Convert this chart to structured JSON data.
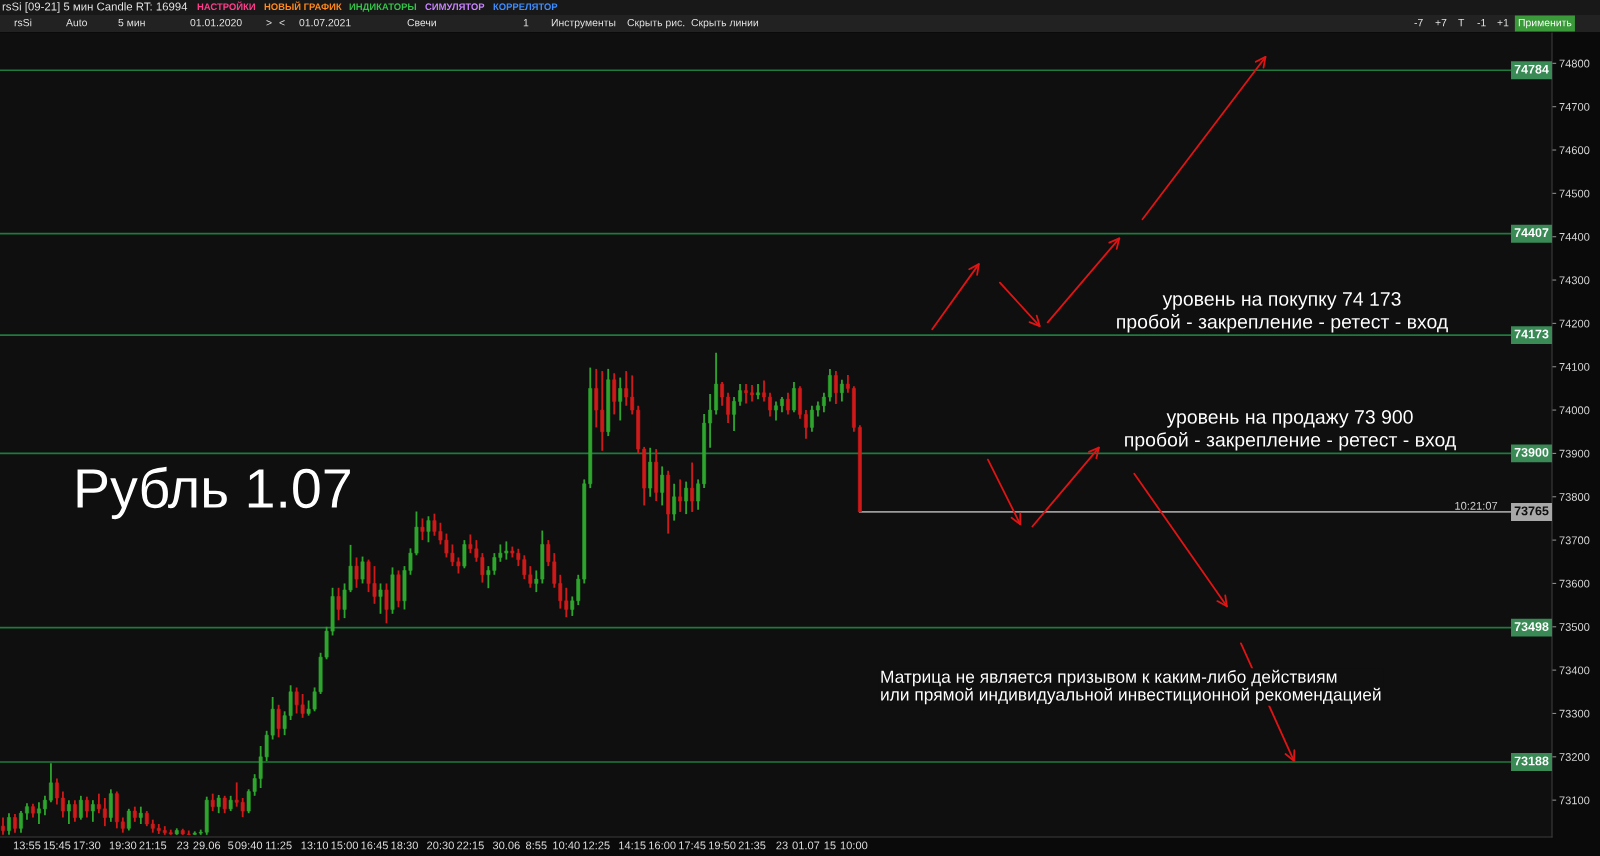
{
  "chart_data": {
    "type": "candlestick",
    "title": "Рубль 1.07",
    "categories": [
      null,
      null,
      null,
      null,
      "13:55",
      null,
      null,
      null,
      null,
      "15:45",
      null,
      null,
      null,
      null,
      "17:30",
      null,
      null,
      null,
      null,
      null,
      "19:30",
      null,
      null,
      null,
      null,
      "21:15",
      null,
      null,
      null,
      null,
      "23",
      null,
      null,
      null,
      "29.06",
      null,
      null,
      null,
      "5",
      null,
      null,
      "09:40",
      null,
      null,
      null,
      null,
      "11:25",
      null,
      null,
      null,
      null,
      null,
      "13:10",
      null,
      null,
      null,
      null,
      "15:00",
      null,
      null,
      null,
      null,
      "16:45",
      null,
      null,
      null,
      null,
      "18:30",
      null,
      null,
      null,
      null,
      null,
      "20:30",
      null,
      null,
      null,
      null,
      "22:15",
      null,
      null,
      null,
      null,
      null,
      "30.06",
      null,
      null,
      null,
      null,
      "8:55",
      null,
      null,
      null,
      null,
      "10:40",
      null,
      null,
      null,
      null,
      "12:25",
      null,
      null,
      null,
      null,
      null,
      "14:15",
      null,
      null,
      null,
      null,
      "16:00",
      null,
      null,
      null,
      null,
      "17:45",
      null,
      null,
      null,
      null,
      "19:50",
      null,
      null,
      null,
      null,
      "21:35",
      null,
      null,
      null,
      null,
      "23",
      null,
      null,
      null,
      "01.07",
      null,
      null,
      null,
      "15",
      null,
      null,
      null,
      "10:00",
      null,
      null,
      null,
      null,
      null,
      null,
      null,
      null,
      null,
      null,
      null,
      null,
      null,
      null,
      null,
      null,
      null,
      null,
      null,
      null,
      null,
      null,
      null,
      null,
      null,
      null,
      null,
      null,
      null,
      null,
      null,
      null,
      null,
      null,
      null,
      null,
      null,
      null,
      null,
      null,
      null,
      null,
      null,
      null,
      null,
      null,
      null,
      null,
      null,
      null,
      null,
      null,
      null,
      null,
      null,
      null,
      null,
      null,
      null,
      null,
      null,
      null,
      null,
      null,
      null,
      null,
      null,
      null,
      null,
      null,
      null,
      null,
      null,
      null,
      null,
      null,
      null,
      null,
      null,
      null,
      null,
      null,
      null,
      null,
      null,
      null,
      null,
      null,
      null,
      null,
      null,
      null,
      null,
      null,
      null,
      null,
      null,
      null,
      null,
      null,
      null,
      null,
      null,
      null,
      null,
      null,
      null,
      null,
      null,
      null,
      null,
      null,
      null,
      null,
      null,
      null
    ],
    "ohlc": [
      [
        73040,
        73060,
        73020,
        73030
      ],
      [
        73030,
        73070,
        73020,
        73060
      ],
      [
        73060,
        73068,
        73025,
        73035
      ],
      [
        73035,
        73075,
        73025,
        73070
      ],
      [
        73070,
        73093,
        73055,
        73085
      ],
      [
        73085,
        73092,
        73060,
        73070
      ],
      [
        73070,
        73095,
        73045,
        73080
      ],
      [
        73080,
        73110,
        73065,
        73100
      ],
      [
        73100,
        73185,
        73095,
        73140
      ],
      [
        73140,
        73150,
        73090,
        73105
      ],
      [
        73105,
        73120,
        73060,
        73075
      ],
      [
        73075,
        73100,
        73045,
        73090
      ],
      [
        73090,
        73100,
        73050,
        73060
      ],
      [
        73060,
        73110,
        73055,
        73100
      ],
      [
        73100,
        73108,
        73060,
        73075
      ],
      [
        73075,
        73100,
        73050,
        73090
      ],
      [
        73090,
        73115,
        73070,
        73080
      ],
      [
        73080,
        73105,
        73040,
        73060
      ],
      [
        73060,
        73125,
        73050,
        73115
      ],
      [
        73115,
        73120,
        73035,
        73050
      ],
      [
        73050,
        73060,
        73025,
        73035
      ],
      [
        73035,
        73080,
        73030,
        73075
      ],
      [
        73075,
        73085,
        73050,
        73060
      ],
      [
        73060,
        73085,
        73045,
        73070
      ],
      [
        73070,
        73075,
        73040,
        73045
      ],
      [
        73045,
        73055,
        73025,
        73035
      ],
      [
        73035,
        73045,
        73022,
        73030
      ],
      [
        73030,
        73040,
        73020,
        73025
      ],
      [
        73025,
        73032,
        73020,
        73022
      ],
      [
        73022,
        73035,
        73020,
        73030
      ],
      [
        73030,
        73034,
        73020,
        73022
      ],
      [
        73022,
        73030,
        73020,
        73021
      ],
      [
        73021,
        73028,
        73020,
        73024
      ],
      [
        73024,
        73032,
        73020,
        73026
      ],
      [
        73026,
        73108,
        73020,
        73100
      ],
      [
        73100,
        73115,
        73075,
        73085
      ],
      [
        73085,
        73112,
        73070,
        73105
      ],
      [
        73105,
        73110,
        73070,
        73080
      ],
      [
        73080,
        73110,
        73075,
        73100
      ],
      [
        73100,
        73141,
        73085,
        73095
      ],
      [
        73095,
        73105,
        73061,
        73075
      ],
      [
        73075,
        73125,
        73070,
        73120
      ],
      [
        73120,
        73160,
        73110,
        73150
      ],
      [
        73150,
        73225,
        73128,
        73200
      ],
      [
        73200,
        73260,
        73190,
        73250
      ],
      [
        73250,
        73338,
        73240,
        73310
      ],
      [
        73310,
        73320,
        73245,
        73265
      ],
      [
        73265,
        73305,
        73250,
        73295
      ],
      [
        73295,
        73365,
        73285,
        73350
      ],
      [
        73350,
        73360,
        73300,
        73320
      ],
      [
        73320,
        73345,
        73290,
        73300
      ],
      [
        73300,
        73330,
        73295,
        73310
      ],
      [
        73310,
        73360,
        73305,
        73350
      ],
      [
        73350,
        73440,
        73345,
        73430
      ],
      [
        73430,
        73500,
        73425,
        73490
      ],
      [
        73490,
        73590,
        73480,
        73570
      ],
      [
        73570,
        73590,
        73515,
        73540
      ],
      [
        73540,
        73600,
        73520,
        73585
      ],
      [
        73585,
        73689,
        73580,
        73640
      ],
      [
        73640,
        73660,
        73590,
        73610
      ],
      [
        73610,
        73662,
        73600,
        73650
      ],
      [
        73650,
        73655,
        73580,
        73600
      ],
      [
        73600,
        73640,
        73553,
        73570
      ],
      [
        73570,
        73600,
        73530,
        73585
      ],
      [
        73585,
        73600,
        73508,
        73540
      ],
      [
        73540,
        73637,
        73530,
        73620
      ],
      [
        73620,
        73630,
        73545,
        73560
      ],
      [
        73560,
        73640,
        73540,
        73630
      ],
      [
        73630,
        73681,
        73620,
        73670
      ],
      [
        73670,
        73766,
        73665,
        73730
      ],
      [
        73730,
        73750,
        73700,
        73720
      ],
      [
        73720,
        73755,
        73695,
        73745
      ],
      [
        73745,
        73761,
        73710,
        73720
      ],
      [
        73720,
        73740,
        73690,
        73700
      ],
      [
        73700,
        73715,
        73660,
        73670
      ],
      [
        73670,
        73690,
        73640,
        73650
      ],
      [
        73650,
        73660,
        73623,
        73640
      ],
      [
        73640,
        73700,
        73635,
        73690
      ],
      [
        73690,
        73713,
        73670,
        73680
      ],
      [
        73680,
        73700,
        73650,
        73660
      ],
      [
        73660,
        73670,
        73602,
        73620
      ],
      [
        73620,
        73640,
        73589,
        73630
      ],
      [
        73630,
        73670,
        73620,
        73660
      ],
      [
        73660,
        73690,
        73650,
        73670
      ],
      [
        73670,
        73697,
        73655,
        73675
      ],
      [
        73675,
        73685,
        73660,
        73670
      ],
      [
        73670,
        73680,
        73640,
        73655
      ],
      [
        73655,
        73665,
        73610,
        73620
      ],
      [
        73620,
        73640,
        73590,
        73600
      ],
      [
        73600,
        73630,
        73580,
        73610
      ],
      [
        73610,
        73722,
        73600,
        73690
      ],
      [
        73690,
        73700,
        73640,
        73650
      ],
      [
        73650,
        73670,
        73590,
        73600
      ],
      [
        73600,
        73620,
        73542,
        73560
      ],
      [
        73560,
        73590,
        73522,
        73540
      ],
      [
        73540,
        73570,
        73525,
        73560
      ],
      [
        73560,
        73620,
        73550,
        73610
      ],
      [
        73610,
        73840,
        73600,
        73830
      ],
      [
        73830,
        74098,
        73820,
        74050
      ],
      [
        74050,
        74095,
        73960,
        74000
      ],
      [
        74000,
        74090,
        73906,
        73950
      ],
      [
        73950,
        74095,
        73940,
        74070
      ],
      [
        74070,
        74085,
        73990,
        74020
      ],
      [
        74020,
        74075,
        73976,
        74050
      ],
      [
        74050,
        74090,
        74010,
        74030
      ],
      [
        74030,
        74080,
        73990,
        74000
      ],
      [
        74000,
        74010,
        73900,
        73910
      ],
      [
        73910,
        73915,
        73780,
        73820
      ],
      [
        73820,
        73913,
        73800,
        73880
      ],
      [
        73880,
        73910,
        73790,
        73810
      ],
      [
        73810,
        73870,
        73780,
        73850
      ],
      [
        73850,
        73860,
        73715,
        73760
      ],
      [
        73760,
        73830,
        73745,
        73800
      ],
      [
        73800,
        73840,
        73765,
        73790
      ],
      [
        73790,
        73835,
        73760,
        73820
      ],
      [
        73820,
        73879,
        73765,
        73790
      ],
      [
        73790,
        73840,
        73770,
        73830
      ],
      [
        73830,
        73991,
        73820,
        73970
      ],
      [
        73970,
        74037,
        73913,
        74000
      ],
      [
        74000,
        74132,
        73990,
        74060
      ],
      [
        74060,
        74065,
        74010,
        74030
      ],
      [
        74030,
        74040,
        73970,
        73990
      ],
      [
        73990,
        74030,
        73952,
        74020
      ],
      [
        74020,
        74060,
        74010,
        74045
      ],
      [
        74045,
        74060,
        74015,
        74040
      ],
      [
        74040,
        74058,
        74020,
        74035
      ],
      [
        74035,
        74060,
        74025,
        74040
      ],
      [
        74040,
        74068,
        74020,
        74030
      ],
      [
        74030,
        74040,
        73985,
        74000
      ],
      [
        74000,
        74020,
        73976,
        74010
      ],
      [
        74010,
        74030,
        73995,
        74025
      ],
      [
        74025,
        74040,
        73990,
        74000
      ],
      [
        74000,
        74065,
        73995,
        74050
      ],
      [
        74050,
        74055,
        73980,
        73990
      ],
      [
        73990,
        74000,
        73934,
        73960
      ],
      [
        73960,
        74010,
        73950,
        74000
      ],
      [
        74000,
        74020,
        73985,
        74010
      ],
      [
        74010,
        74040,
        73995,
        74030
      ],
      [
        74030,
        74095,
        74020,
        74080
      ],
      [
        74080,
        74090,
        74014,
        74040
      ],
      [
        74040,
        74070,
        74020,
        74060
      ],
      [
        74060,
        74081,
        74040,
        74050
      ],
      [
        74050,
        74055,
        73950,
        73960
      ],
      [
        73960,
        73965,
        73765,
        73765
      ],
      null,
      null,
      null,
      null,
      null,
      null,
      null,
      null,
      null,
      null,
      null,
      null,
      null,
      null,
      null,
      null,
      null,
      null,
      null,
      null,
      null,
      null,
      null,
      null,
      null,
      null,
      null,
      null,
      null,
      null,
      null,
      null,
      null,
      null,
      null,
      null,
      null,
      null,
      null,
      null,
      null,
      null,
      null,
      null,
      null,
      null,
      null,
      null,
      null,
      null,
      null,
      null,
      null,
      null,
      null,
      null,
      null,
      null,
      null,
      null,
      null,
      null,
      null,
      null,
      null,
      null,
      null,
      null,
      null,
      null,
      null,
      null,
      null,
      null,
      null,
      null,
      null,
      null,
      null,
      null,
      null,
      null,
      null,
      null,
      null,
      null,
      null,
      null,
      null,
      null,
      null,
      null,
      null,
      null,
      null,
      null,
      null,
      null,
      null,
      null,
      null,
      null,
      null,
      null,
      null,
      null,
      null,
      null,
      null,
      null,
      null,
      null,
      null,
      null,
      null
    ],
    "colors": [
      "#d01a1a",
      "#2ea62e",
      "#d01a1a",
      "#2ea62e",
      "#2ea62e",
      "#d01a1a",
      "#2ea62e",
      "#2ea62e",
      "#2ea62e",
      "#d01a1a",
      "#d01a1a",
      "#2ea62e",
      "#d01a1a",
      "#2ea62e",
      "#d01a1a",
      "#2ea62e",
      "#d01a1a",
      "#d01a1a",
      "#2ea62e",
      "#d01a1a",
      "#d01a1a",
      "#2ea62e",
      "#d01a1a",
      "#2ea62e",
      "#d01a1a",
      "#d01a1a",
      "#d01a1a",
      "#d01a1a",
      "#d01a1a",
      "#2ea62e",
      "#d01a1a",
      "#d01a1a",
      "#2ea62e",
      "#2ea62e",
      "#2ea62e",
      "#d01a1a",
      "#2ea62e",
      "#d01a1a",
      "#2ea62e",
      "#d01a1a",
      "#d01a1a",
      "#2ea62e",
      "#2ea62e",
      "#2ea62e",
      "#2ea62e",
      "#2ea62e",
      "#d01a1a",
      "#2ea62e",
      "#2ea62e",
      "#d01a1a",
      "#d01a1a",
      "#2ea62e",
      "#2ea62e",
      "#2ea62e",
      "#2ea62e",
      "#2ea62e",
      "#d01a1a",
      "#2ea62e",
      "#2ea62e",
      "#d01a1a",
      "#2ea62e",
      "#d01a1a",
      "#d01a1a",
      "#2ea62e",
      "#d01a1a",
      "#2ea62e",
      "#d01a1a",
      "#2ea62e",
      "#2ea62e",
      "#2ea62e",
      "#d01a1a",
      "#2ea62e",
      "#d01a1a",
      "#d01a1a",
      "#d01a1a",
      "#d01a1a",
      "#d01a1a",
      "#2ea62e",
      "#d01a1a",
      "#d01a1a",
      "#d01a1a",
      "#2ea62e",
      "#2ea62e",
      "#2ea62e",
      "#2ea62e",
      "#d01a1a",
      "#d01a1a",
      "#d01a1a",
      "#d01a1a",
      "#2ea62e",
      "#2ea62e",
      "#d01a1a",
      "#d01a1a",
      "#d01a1a",
      "#d01a1a",
      "#2ea62e",
      "#2ea62e",
      "#2ea62e",
      "#2ea62e",
      "#d01a1a",
      "#d01a1a",
      "#2ea62e",
      "#d01a1a",
      "#2ea62e",
      "#d01a1a",
      "#d01a1a",
      "#d01a1a",
      "#d01a1a",
      "#2ea62e",
      "#d01a1a",
      "#2ea62e",
      "#d01a1a",
      "#2ea62e",
      "#d01a1a",
      "#2ea62e",
      "#d01a1a",
      "#2ea62e",
      "#2ea62e",
      "#2ea62e",
      "#2ea62e",
      "#d01a1a",
      "#d01a1a",
      "#2ea62e",
      "#2ea62e",
      "#d01a1a",
      "#d01a1a",
      "#2ea62e",
      "#d01a1a",
      "#d01a1a",
      "#2ea62e",
      "#2ea62e",
      "#d01a1a",
      "#2ea62e",
      "#d01a1a",
      "#d01a1a",
      "#2ea62e",
      "#2ea62e",
      "#2ea62e",
      "#2ea62e",
      "#d01a1a",
      "#2ea62e",
      "#d01a1a",
      "#d01a1a",
      "#d01a1a",
      null,
      null,
      null,
      null,
      null,
      null,
      null,
      null,
      null,
      null,
      null,
      null,
      null,
      null,
      null,
      null,
      null,
      null,
      null,
      null,
      null,
      null,
      null,
      null,
      null,
      null,
      null,
      null,
      null,
      null,
      null,
      null,
      null,
      null,
      null,
      null,
      null,
      null,
      null,
      null,
      null,
      null,
      null,
      null,
      null,
      null,
      null,
      null,
      null,
      null,
      null,
      null,
      null,
      null,
      null,
      null,
      null,
      null,
      null,
      null,
      null,
      null,
      null,
      null,
      null,
      null,
      null,
      null,
      null,
      null,
      null,
      null,
      null,
      null,
      null,
      null,
      null,
      null,
      null,
      null,
      null,
      null,
      null,
      null,
      null,
      null,
      null,
      null,
      null,
      null,
      null,
      null,
      null,
      null,
      null,
      null,
      null,
      null,
      null,
      null,
      null,
      null,
      null,
      null,
      null,
      null,
      null,
      null,
      null,
      null,
      null,
      null,
      null,
      null,
      null
    ],
    "ylim": [
      73015,
      74870
    ],
    "yticks": [
      73100,
      73200,
      73300,
      73400,
      73500,
      73600,
      73700,
      73800,
      73900,
      74000,
      74100,
      74200,
      74300,
      74400,
      74500,
      74600,
      74700,
      74800
    ],
    "ref_lines": [
      {
        "axis": "y",
        "value": 74784,
        "label": "74784",
        "color": "#1f7a3f"
      },
      {
        "axis": "y",
        "value": 74407,
        "label": "74407",
        "color": "#1f7a3f"
      },
      {
        "axis": "y",
        "value": 74173,
        "label": "74173",
        "color": "#1f7a3f"
      },
      {
        "axis": "y",
        "value": 73900,
        "label": "73900",
        "color": "#1f7a3f"
      },
      {
        "axis": "y",
        "value": 73765,
        "label": "73765",
        "color": "#9c9c9c"
      },
      {
        "axis": "y",
        "value": 73498,
        "label": "73498",
        "color": "#1f7a3f"
      },
      {
        "axis": "y",
        "value": 73188,
        "label": "73188",
        "color": "#1f7a3f"
      }
    ],
    "annotations": [
      "уровень на покупку 74 173\nпробой - закрепление - ретест - вход",
      "уровень на продажу 73 900\nпробой - закрепление - ретест - вход",
      "Матрица не является призывом к каким-либо действиям\nили прямой индивидуальной инвестиционной рекомендацией",
      {
        "text": "10:21:07",
        "y": 73765
      },
      "rsSi [09-21] 5 мин Candle RT: 16994",
      "НАСТРОЙКИ",
      "НОВЫЙ ГРАФИК",
      "ИНДИКАТОРЫ",
      "СИМУЛЯТОР",
      "КОРРЕЛЯТОР",
      "rsSi",
      "Auto",
      "5 мин",
      "01.01.2020",
      ">",
      "<",
      "01.07.2021",
      "Свечи",
      "1",
      "Инструменты",
      "Скрыть рис.",
      "Скрыть линии",
      "-7",
      "+7",
      "T",
      "-1",
      "+1",
      "Применить"
    ]
  }
}
